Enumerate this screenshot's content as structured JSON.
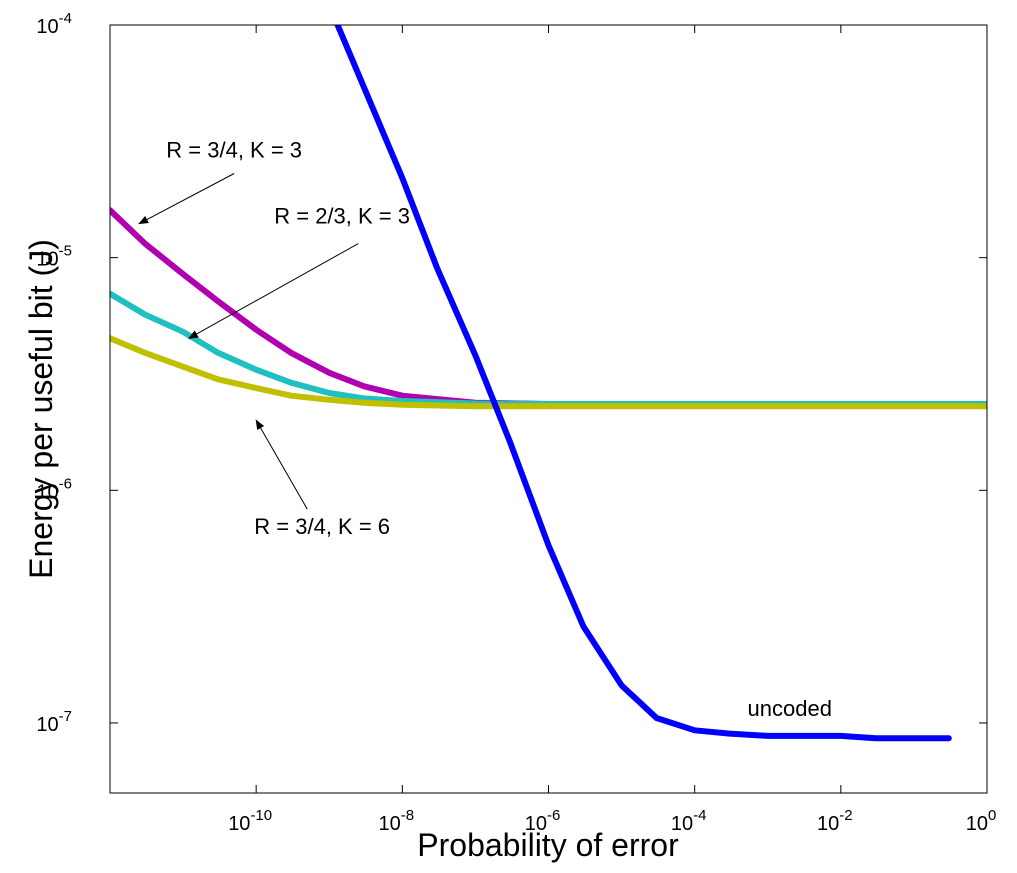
{
  "chart_data": {
    "type": "line",
    "xlabel": "Probability of error",
    "ylabel": "Energy per useful bit (J)",
    "xscale": "log",
    "yscale": "log",
    "xlim": [
      1e-12,
      1
    ],
    "ylim": [
      5e-08,
      0.0001
    ],
    "xticks": [
      {
        "value": 1e-10,
        "base": "10",
        "exp": "-10"
      },
      {
        "value": 1e-08,
        "base": "10",
        "exp": "-8"
      },
      {
        "value": 1e-06,
        "base": "10",
        "exp": "-6"
      },
      {
        "value": 0.0001,
        "base": "10",
        "exp": "-4"
      },
      {
        "value": 0.01,
        "base": "10",
        "exp": "-2"
      },
      {
        "value": 1,
        "base": "10",
        "exp": "0"
      }
    ],
    "yticks": [
      {
        "value": 1e-07,
        "base": "10",
        "exp": "-7"
      },
      {
        "value": 1e-06,
        "base": "10",
        "exp": "-6"
      },
      {
        "value": 1e-05,
        "base": "10",
        "exp": "-5"
      },
      {
        "value": 0.0001,
        "base": "10",
        "exp": "-4"
      }
    ],
    "grid": false,
    "legend": "none",
    "series": [
      {
        "name": "R = 3/4, K = 3",
        "color": "#b000b0",
        "x": [
          1e-12,
          3e-12,
          1e-11,
          3e-11,
          1e-10,
          3e-10,
          1e-09,
          3e-09,
          1e-08,
          1e-07,
          1e-06,
          0.0001,
          0.01,
          1
        ],
        "y": [
          1.6e-05,
          1.15e-05,
          8.5e-06,
          6.5e-06,
          4.9e-06,
          3.9e-06,
          3.2e-06,
          2.8e-06,
          2.55e-06,
          2.38e-06,
          2.35e-06,
          2.33e-06,
          2.33e-06,
          2.33e-06
        ]
      },
      {
        "name": "R = 2/3, K = 3",
        "color": "#20c0c0",
        "x": [
          1e-12,
          3e-12,
          1e-11,
          3e-11,
          1e-10,
          3e-10,
          1e-09,
          3e-09,
          1e-08,
          1e-07,
          1e-06,
          0.0001,
          0.01,
          1
        ],
        "y": [
          7e-06,
          5.7e-06,
          4.8e-06,
          3.9e-06,
          3.3e-06,
          2.9e-06,
          2.62e-06,
          2.48e-06,
          2.42e-06,
          2.36e-06,
          2.35e-06,
          2.35e-06,
          2.35e-06,
          2.35e-06
        ]
      },
      {
        "name": "R = 3/4, K = 6",
        "color": "#c0c000",
        "x": [
          1e-12,
          3e-12,
          1e-11,
          3e-11,
          1e-10,
          3e-10,
          1e-09,
          3e-09,
          1e-08,
          1e-07,
          1e-06,
          0.0001,
          0.01,
          1
        ],
        "y": [
          4.5e-06,
          3.9e-06,
          3.4e-06,
          3e-06,
          2.75e-06,
          2.55e-06,
          2.45e-06,
          2.38e-06,
          2.33e-06,
          2.3e-06,
          2.3e-06,
          2.3e-06,
          2.3e-06,
          2.3e-06
        ]
      },
      {
        "name": "uncoded",
        "color": "#0000ff",
        "x": [
          1.3e-09,
          1e-08,
          3e-08,
          1e-07,
          3e-07,
          1e-06,
          3e-06,
          1e-05,
          3e-05,
          0.0001,
          0.0003,
          0.001,
          0.01,
          0.03,
          0.3
        ],
        "y": [
          0.0001,
          2.2e-05,
          9e-06,
          3.8e-06,
          1.6e-06,
          5.8e-07,
          2.6e-07,
          1.45e-07,
          1.05e-07,
          9.3e-08,
          9e-08,
          8.8e-08,
          8.8e-08,
          8.6e-08,
          8.6e-08
        ]
      }
    ],
    "annotations": [
      {
        "text": "R = 3/4, K = 3",
        "text_x": 5e-11,
        "text_y": 2.7e-05,
        "arrow_from": [
          5e-11,
          2.3e-05
        ],
        "arrow_to": [
          2.5e-12,
          1.4e-05
        ]
      },
      {
        "text": "R = 2/3, K = 3",
        "text_x": 1.5e-09,
        "text_y": 1.4e-05,
        "arrow_from": [
          2.5e-09,
          1.15e-05
        ],
        "arrow_to": [
          1.2e-11,
          4.5e-06
        ]
      },
      {
        "text": "R = 3/4, K = 6",
        "text_x": 8e-10,
        "text_y": 6.5e-07,
        "arrow_from": [
          5e-10,
          8.3e-07
        ],
        "arrow_to": [
          1e-10,
          2e-06
        ]
      },
      {
        "text": "uncoded",
        "text_x": 0.002,
        "text_y": 1.07e-07
      }
    ]
  }
}
